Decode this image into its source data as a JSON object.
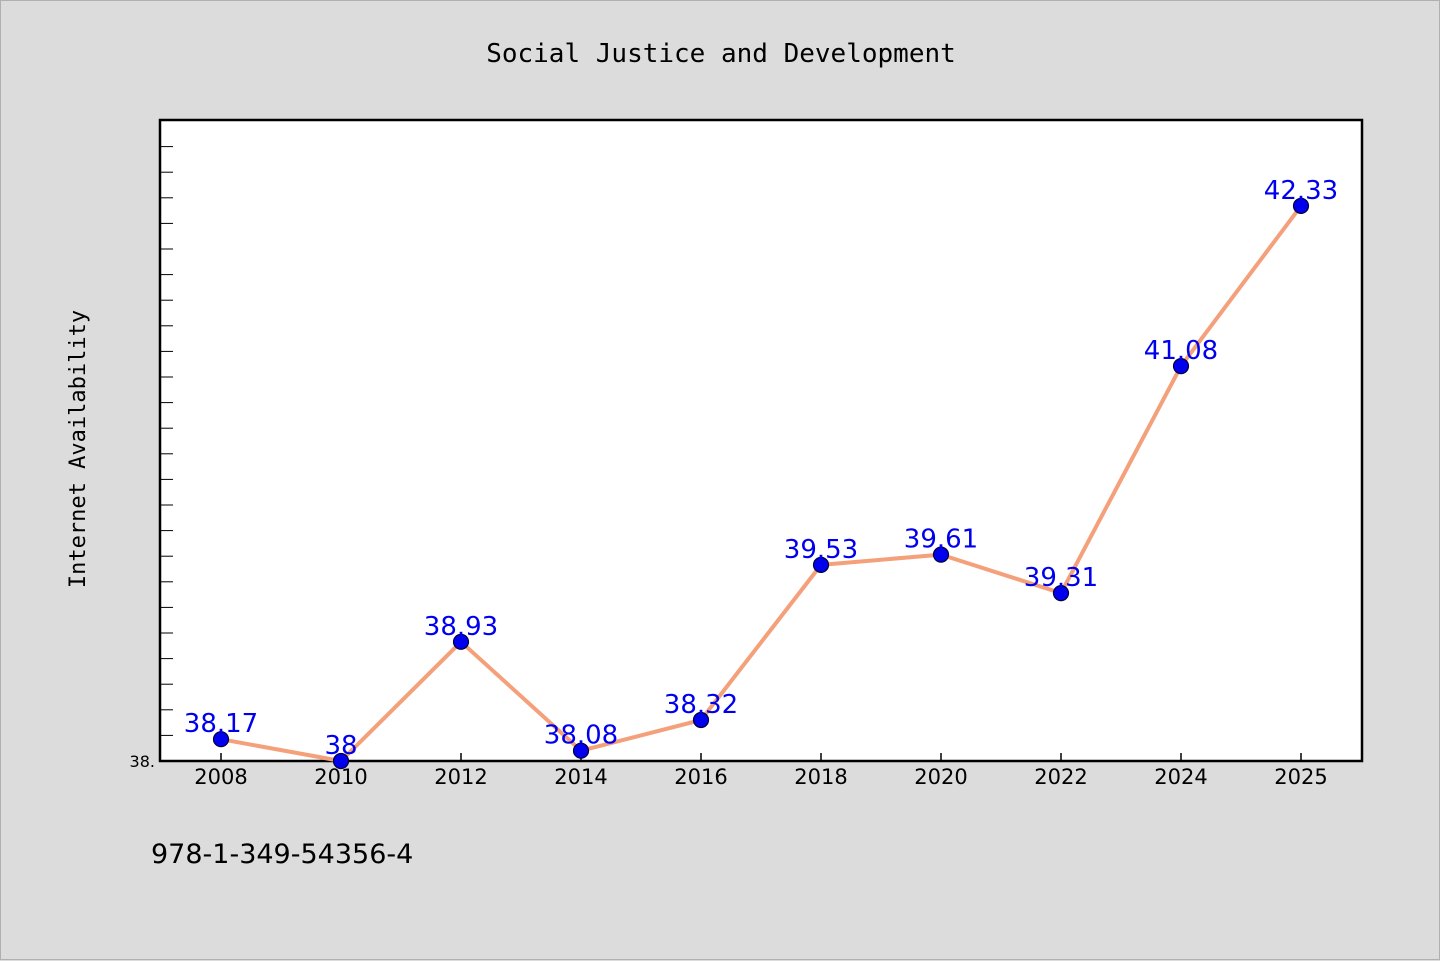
{
  "chart_data": {
    "type": "line",
    "title": "Social Justice and Development",
    "ylabel": "Internet Availability",
    "xlabel": "",
    "x": [
      "2008",
      "2010",
      "2012",
      "2014",
      "2016",
      "2018",
      "2020",
      "2022",
      "2024",
      "2025"
    ],
    "values": [
      38.17,
      38.0,
      38.93,
      38.08,
      38.32,
      39.53,
      39.61,
      39.31,
      41.08,
      42.33
    ],
    "point_labels": [
      "38.17",
      "38",
      "38.93",
      "38.08",
      "38.32",
      "39.53",
      "39.61",
      "39.31",
      "41.08",
      "42.33"
    ],
    "ylim": [
      38.0,
      43.0
    ],
    "ytick_labels": [
      "38."
    ],
    "line_color": "#f4a07a",
    "marker_color": "#0000ee",
    "label_color": "#0000ee",
    "grid": false,
    "legend": "none"
  },
  "footer": {
    "code": "978-1-349-54356-4"
  }
}
